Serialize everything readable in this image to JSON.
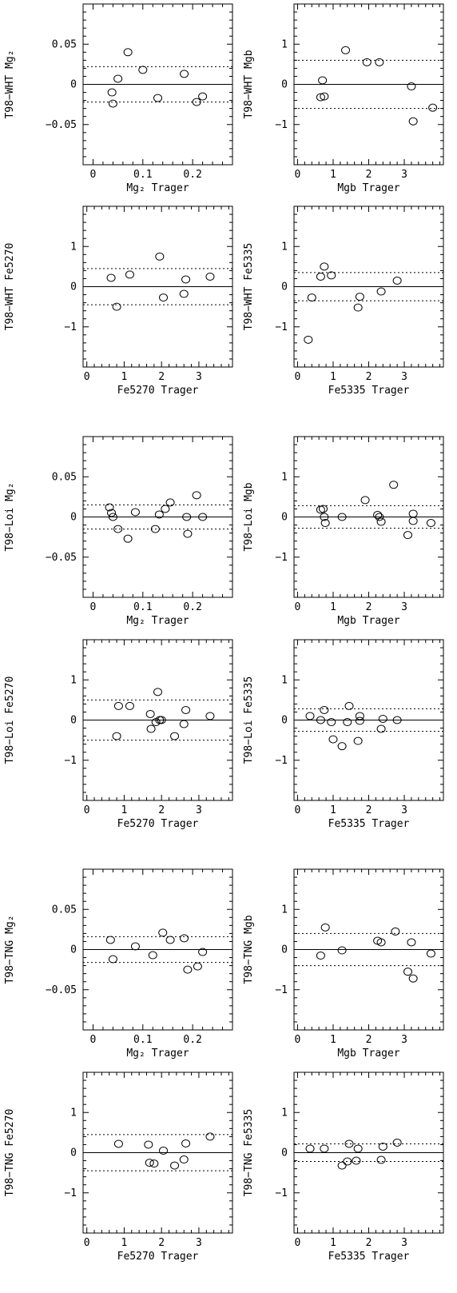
{
  "chart_data": [
    {
      "type": "scatter",
      "name": "T98-WHT Mg2",
      "xlabel": "Mg₂ Trager",
      "ylabel": "T98−WHT Mg₂",
      "xlim": [
        -0.02,
        0.28
      ],
      "ylim": [
        -0.1,
        0.1
      ],
      "xticks": [
        0,
        0.1,
        0.2
      ],
      "xtick_labels": [
        "0",
        "0.1",
        "0.2"
      ],
      "yticks": [
        -0.05,
        0,
        0.05
      ],
      "ytick_labels": [
        "−0.05",
        "0",
        "0.05"
      ],
      "x_minor": 0.02,
      "y_minor": 0.01,
      "zero_line": 0,
      "rms": [
        0.022,
        -0.022
      ],
      "points": [
        [
          0.038,
          -0.01
        ],
        [
          0.04,
          -0.024
        ],
        [
          0.05,
          0.007
        ],
        [
          0.07,
          0.04
        ],
        [
          0.1,
          0.018
        ],
        [
          0.13,
          -0.017
        ],
        [
          0.183,
          0.013
        ],
        [
          0.208,
          -0.022
        ],
        [
          0.22,
          -0.015
        ]
      ]
    },
    {
      "type": "scatter",
      "name": "T98-WHT Mgb",
      "xlabel": "Mgb Trager",
      "ylabel": "T98−WHT Mgb",
      "xlim": [
        -0.1,
        4.1
      ],
      "ylim": [
        -2,
        2
      ],
      "xticks": [
        0,
        1,
        2,
        3
      ],
      "xtick_labels": [
        "0",
        "1",
        "2",
        "3"
      ],
      "yticks": [
        -1,
        0,
        1
      ],
      "ytick_labels": [
        "−1",
        "0",
        "1"
      ],
      "x_minor": 0.2,
      "y_minor": 0.2,
      "zero_line": 0,
      "rms": [
        0.6,
        -0.6
      ],
      "points": [
        [
          0.65,
          -0.32
        ],
        [
          0.7,
          0.1
        ],
        [
          0.75,
          -0.3
        ],
        [
          1.35,
          0.85
        ],
        [
          1.95,
          0.55
        ],
        [
          2.3,
          0.55
        ],
        [
          3.2,
          -0.05
        ],
        [
          3.25,
          -0.92
        ],
        [
          3.8,
          -0.58
        ]
      ]
    },
    {
      "type": "scatter",
      "name": "T98-WHT Fe5270",
      "xlabel": "Fe5270 Trager",
      "ylabel": "T98−WHT Fe5270",
      "xlim": [
        -0.1,
        3.9
      ],
      "ylim": [
        -2,
        2
      ],
      "xticks": [
        0,
        1,
        2,
        3
      ],
      "xtick_labels": [
        "0",
        "1",
        "2",
        "3"
      ],
      "yticks": [
        -1,
        0,
        1
      ],
      "ytick_labels": [
        "−1",
        "0",
        "1"
      ],
      "x_minor": 0.2,
      "y_minor": 0.2,
      "zero_line": 0,
      "rms": [
        0.45,
        -0.45
      ],
      "points": [
        [
          0.65,
          0.22
        ],
        [
          0.8,
          -0.5
        ],
        [
          1.15,
          0.3
        ],
        [
          1.95,
          0.75
        ],
        [
          2.05,
          -0.27
        ],
        [
          2.6,
          -0.18
        ],
        [
          2.65,
          0.18
        ],
        [
          3.3,
          0.25
        ]
      ]
    },
    {
      "type": "scatter",
      "name": "T98-WHT Fe5335",
      "xlabel": "Fe5335 Trager",
      "ylabel": "T98−WHT Fe5335",
      "xlim": [
        -0.1,
        4.1
      ],
      "ylim": [
        -2,
        2
      ],
      "xticks": [
        0,
        1,
        2,
        3
      ],
      "xtick_labels": [
        "0",
        "1",
        "2",
        "3"
      ],
      "yticks": [
        -1,
        0,
        1
      ],
      "ytick_labels": [
        "−1",
        "0",
        "1"
      ],
      "x_minor": 0.2,
      "y_minor": 0.2,
      "zero_line": 0,
      "rms": [
        0.35,
        -0.35
      ],
      "points": [
        [
          0.3,
          -1.32
        ],
        [
          0.4,
          -0.27
        ],
        [
          0.65,
          0.25
        ],
        [
          0.75,
          0.5
        ],
        [
          0.95,
          0.28
        ],
        [
          1.7,
          -0.52
        ],
        [
          1.75,
          -0.25
        ],
        [
          2.35,
          -0.12
        ],
        [
          2.8,
          0.15
        ]
      ]
    },
    {
      "type": "scatter",
      "name": "T98-Loi Mg2",
      "xlabel": "Mg₂ Trager",
      "ylabel": "T98−Loi Mg₂",
      "xlim": [
        -0.02,
        0.28
      ],
      "ylim": [
        -0.1,
        0.1
      ],
      "xticks": [
        0,
        0.1,
        0.2
      ],
      "xtick_labels": [
        "0",
        "0.1",
        "0.2"
      ],
      "yticks": [
        -0.05,
        0,
        0.05
      ],
      "ytick_labels": [
        "−0.05",
        "0",
        "0.05"
      ],
      "x_minor": 0.02,
      "y_minor": 0.01,
      "zero_line": 0,
      "rms": [
        0.015,
        -0.015
      ],
      "points": [
        [
          0.033,
          0.012
        ],
        [
          0.037,
          0.005
        ],
        [
          0.04,
          0.0
        ],
        [
          0.05,
          -0.015
        ],
        [
          0.07,
          -0.027
        ],
        [
          0.085,
          0.006
        ],
        [
          0.125,
          -0.015
        ],
        [
          0.133,
          0.003
        ],
        [
          0.145,
          0.01
        ],
        [
          0.155,
          0.018
        ],
        [
          0.188,
          0.0
        ],
        [
          0.19,
          -0.021
        ],
        [
          0.208,
          0.027
        ],
        [
          0.22,
          0.0
        ]
      ]
    },
    {
      "type": "scatter",
      "name": "T98-Loi Mgb",
      "xlabel": "Mgb Trager",
      "ylabel": "T98−Loi Mgb",
      "xlim": [
        -0.1,
        4.1
      ],
      "ylim": [
        -2,
        2
      ],
      "xticks": [
        0,
        1,
        2,
        3
      ],
      "xtick_labels": [
        "0",
        "1",
        "2",
        "3"
      ],
      "yticks": [
        -1,
        0,
        1
      ],
      "ytick_labels": [
        "−1",
        "0",
        "1"
      ],
      "x_minor": 0.2,
      "y_minor": 0.2,
      "zero_line": 0,
      "rms": [
        0.28,
        -0.28
      ],
      "points": [
        [
          0.65,
          0.18
        ],
        [
          0.72,
          0.2
        ],
        [
          0.75,
          0.0
        ],
        [
          0.78,
          -0.15
        ],
        [
          1.25,
          0.0
        ],
        [
          1.9,
          0.42
        ],
        [
          2.25,
          0.05
        ],
        [
          2.3,
          0.0
        ],
        [
          2.35,
          -0.12
        ],
        [
          2.7,
          0.8
        ],
        [
          3.1,
          -0.45
        ],
        [
          3.25,
          0.08
        ],
        [
          3.25,
          -0.1
        ],
        [
          3.75,
          -0.15
        ]
      ]
    },
    {
      "type": "scatter",
      "name": "T98-Loi Fe5270",
      "xlabel": "Fe5270 Trager",
      "ylabel": "T98−Loi Fe5270",
      "xlim": [
        -0.1,
        3.9
      ],
      "ylim": [
        -2,
        2
      ],
      "xticks": [
        0,
        1,
        2,
        3
      ],
      "xtick_labels": [
        "0",
        "1",
        "2",
        "3"
      ],
      "yticks": [
        -1,
        0,
        1
      ],
      "ytick_labels": [
        "−1",
        "0",
        "1"
      ],
      "x_minor": 0.2,
      "y_minor": 0.2,
      "zero_line": 0,
      "rms": [
        0.5,
        -0.5
      ],
      "points": [
        [
          0.8,
          -0.4
        ],
        [
          0.85,
          0.35
        ],
        [
          1.15,
          0.35
        ],
        [
          1.7,
          0.15
        ],
        [
          1.72,
          -0.22
        ],
        [
          1.85,
          -0.05
        ],
        [
          1.9,
          0.7
        ],
        [
          1.95,
          0.0
        ],
        [
          2.0,
          0.0
        ],
        [
          2.35,
          -0.4
        ],
        [
          2.6,
          -0.1
        ],
        [
          2.65,
          0.25
        ],
        [
          3.3,
          0.1
        ]
      ]
    },
    {
      "type": "scatter",
      "name": "T98-Loi Fe5335",
      "xlabel": "Fe5335 Trager",
      "ylabel": "T98−Loi Fe5335",
      "xlim": [
        -0.1,
        4.1
      ],
      "ylim": [
        -2,
        2
      ],
      "xticks": [
        0,
        1,
        2,
        3
      ],
      "xtick_labels": [
        "0",
        "1",
        "2",
        "3"
      ],
      "yticks": [
        -1,
        0,
        1
      ],
      "ytick_labels": [
        "−1",
        "0",
        "1"
      ],
      "x_minor": 0.2,
      "y_minor": 0.2,
      "zero_line": 0,
      "rms": [
        0.28,
        -0.28
      ],
      "points": [
        [
          0.35,
          0.1
        ],
        [
          0.65,
          0.0
        ],
        [
          0.75,
          0.25
        ],
        [
          0.95,
          -0.05
        ],
        [
          1.0,
          -0.48
        ],
        [
          1.25,
          -0.65
        ],
        [
          1.4,
          -0.05
        ],
        [
          1.45,
          0.35
        ],
        [
          1.7,
          -0.52
        ],
        [
          1.75,
          0.1
        ],
        [
          1.75,
          -0.02
        ],
        [
          2.35,
          -0.22
        ],
        [
          2.4,
          0.03
        ],
        [
          2.8,
          0.0
        ]
      ]
    },
    {
      "type": "scatter",
      "name": "T98-TNG Mg2",
      "xlabel": "Mg₂ Trager",
      "ylabel": "T98−TNG Mg₂",
      "xlim": [
        -0.02,
        0.28
      ],
      "ylim": [
        -0.1,
        0.1
      ],
      "xticks": [
        0,
        0.1,
        0.2
      ],
      "xtick_labels": [
        "0",
        "0.1",
        "0.2"
      ],
      "yticks": [
        -0.05,
        0,
        0.05
      ],
      "ytick_labels": [
        "−0.05",
        "0",
        "0.05"
      ],
      "x_minor": 0.02,
      "y_minor": 0.01,
      "zero_line": 0,
      "rms": [
        0.016,
        -0.016
      ],
      "points": [
        [
          0.035,
          0.012
        ],
        [
          0.04,
          -0.012
        ],
        [
          0.085,
          0.004
        ],
        [
          0.12,
          -0.007
        ],
        [
          0.14,
          0.021
        ],
        [
          0.155,
          0.012
        ],
        [
          0.183,
          0.014
        ],
        [
          0.19,
          -0.025
        ],
        [
          0.21,
          -0.021
        ],
        [
          0.22,
          -0.003
        ]
      ]
    },
    {
      "type": "scatter",
      "name": "T98-TNG Mgb",
      "xlabel": "Mgb Trager",
      "ylabel": "T98−TNG Mgb",
      "xlim": [
        -0.1,
        4.1
      ],
      "ylim": [
        -2,
        2
      ],
      "xticks": [
        0,
        1,
        2,
        3
      ],
      "xtick_labels": [
        "0",
        "1",
        "2",
        "3"
      ],
      "yticks": [
        -1,
        0,
        1
      ],
      "ytick_labels": [
        "−1",
        "0",
        "1"
      ],
      "x_minor": 0.2,
      "y_minor": 0.2,
      "zero_line": 0,
      "rms": [
        0.4,
        -0.4
      ],
      "points": [
        [
          0.65,
          -0.15
        ],
        [
          0.78,
          0.55
        ],
        [
          1.25,
          -0.02
        ],
        [
          2.25,
          0.22
        ],
        [
          2.35,
          0.18
        ],
        [
          2.75,
          0.45
        ],
        [
          3.1,
          -0.55
        ],
        [
          3.2,
          0.18
        ],
        [
          3.25,
          -0.72
        ],
        [
          3.75,
          -0.1
        ]
      ]
    },
    {
      "type": "scatter",
      "name": "T98-TNG Fe5270",
      "xlabel": "Fe5270 Trager",
      "ylabel": "T98−TNG Fe5270",
      "xlim": [
        -0.1,
        3.9
      ],
      "ylim": [
        -2,
        2
      ],
      "xticks": [
        0,
        1,
        2,
        3
      ],
      "xtick_labels": [
        "0",
        "1",
        "2",
        "3"
      ],
      "yticks": [
        -1,
        0,
        1
      ],
      "ytick_labels": [
        "−1",
        "0",
        "1"
      ],
      "x_minor": 0.2,
      "y_minor": 0.2,
      "zero_line": 0,
      "rms": [
        0.45,
        -0.45
      ],
      "points": [
        [
          0.85,
          0.22
        ],
        [
          1.65,
          0.2
        ],
        [
          1.68,
          -0.25
        ],
        [
          1.8,
          -0.27
        ],
        [
          2.05,
          0.05
        ],
        [
          2.35,
          -0.32
        ],
        [
          2.6,
          -0.17
        ],
        [
          2.65,
          0.23
        ],
        [
          3.3,
          0.4
        ]
      ]
    },
    {
      "type": "scatter",
      "name": "T98-TNG Fe5335",
      "xlabel": "Fe5335 Trager",
      "ylabel": "T98−TNG Fe5335",
      "xlim": [
        -0.1,
        4.1
      ],
      "ylim": [
        -2,
        2
      ],
      "xticks": [
        0,
        1,
        2,
        3
      ],
      "xtick_labels": [
        "0",
        "1",
        "2",
        "3"
      ],
      "yticks": [
        -1,
        0,
        1
      ],
      "ytick_labels": [
        "−1",
        "0",
        "1"
      ],
      "x_minor": 0.2,
      "y_minor": 0.2,
      "zero_line": 0,
      "rms": [
        0.22,
        -0.22
      ],
      "points": [
        [
          0.35,
          0.1
        ],
        [
          0.75,
          0.1
        ],
        [
          1.25,
          -0.32
        ],
        [
          1.4,
          -0.22
        ],
        [
          1.45,
          0.22
        ],
        [
          1.65,
          -0.2
        ],
        [
          1.7,
          0.1
        ],
        [
          2.35,
          -0.18
        ],
        [
          2.4,
          0.15
        ],
        [
          2.8,
          0.25
        ]
      ]
    }
  ]
}
